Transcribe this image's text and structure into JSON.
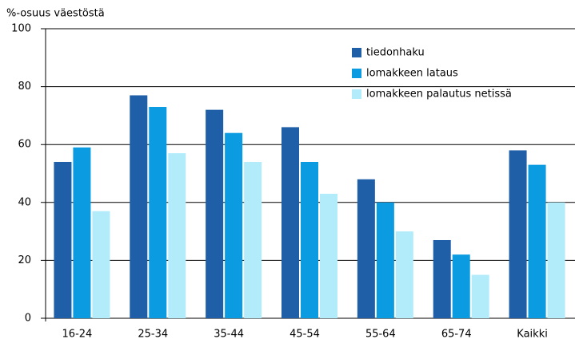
{
  "chart_data": {
    "type": "bar",
    "title": "%-osuus väestöstä",
    "categories": [
      "16-24",
      "25-34",
      "35-44",
      "45-54",
      "55-64",
      "65-74",
      "Kaikki"
    ],
    "series": [
      {
        "name": "tiedonhaku",
        "color": "#1f5fa8",
        "values": [
          54,
          77,
          72,
          66,
          48,
          27,
          58
        ]
      },
      {
        "name": "lomakkeen lataus",
        "color": "#0a9be0",
        "values": [
          59,
          73,
          64,
          54,
          40,
          22,
          53
        ]
      },
      {
        "name": "lomakkeen palautus netissä",
        "color": "#b2ecfb",
        "values": [
          37,
          57,
          54,
          43,
          30,
          15,
          40
        ]
      }
    ],
    "ylim": [
      0,
      100
    ],
    "yticks": [
      0,
      20,
      40,
      60,
      80,
      100
    ],
    "grid": true,
    "legend": "upper right"
  }
}
